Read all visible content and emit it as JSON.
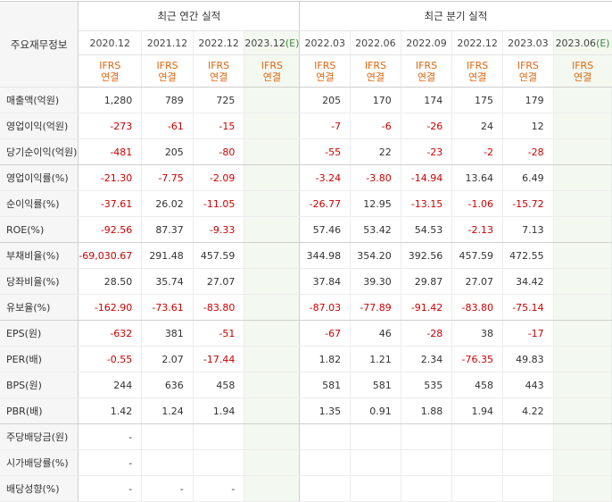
{
  "header": {
    "label_column": "주요재무정보",
    "annual_group": "최근 연간 실적",
    "quarterly_group": "최근 분기 실적",
    "annual_periods": [
      "2020.12",
      "2021.12",
      "2022.12",
      "2023.12"
    ],
    "annual_estimate_mark": "(E)",
    "quarterly_periods": [
      "2022.03",
      "2022.06",
      "2022.09",
      "2022.12",
      "2023.03",
      "2023.06"
    ],
    "quarterly_estimate_mark": "(E)",
    "basis_line1": "IFRS",
    "basis_line2": "연결"
  },
  "rows": [
    {
      "label": "매출액(억원)",
      "annual": [
        "1,280",
        "789",
        "725",
        ""
      ],
      "quarterly": [
        "205",
        "170",
        "174",
        "175",
        "179",
        ""
      ]
    },
    {
      "label": "영업이익(억원)",
      "annual": [
        "-273",
        "-61",
        "-15",
        ""
      ],
      "quarterly": [
        "-7",
        "-6",
        "-26",
        "24",
        "12",
        ""
      ]
    },
    {
      "label": "당기순이익(억원)",
      "annual": [
        "-481",
        "205",
        "-80",
        ""
      ],
      "quarterly": [
        "-55",
        "22",
        "-23",
        "-2",
        "-28",
        ""
      ]
    },
    {
      "label": "영업이익률(%)",
      "annual": [
        "-21.30",
        "-7.75",
        "-2.09",
        ""
      ],
      "quarterly": [
        "-3.24",
        "-3.80",
        "-14.94",
        "13.64",
        "6.49",
        ""
      ]
    },
    {
      "label": "순이익률(%)",
      "annual": [
        "-37.61",
        "26.02",
        "-11.05",
        ""
      ],
      "quarterly": [
        "-26.77",
        "12.95",
        "-13.15",
        "-1.06",
        "-15.72",
        ""
      ]
    },
    {
      "label": "ROE(%)",
      "annual": [
        "-92.56",
        "87.37",
        "-9.33",
        ""
      ],
      "quarterly": [
        "57.46",
        "53.42",
        "54.53",
        "-2.13",
        "7.13",
        ""
      ]
    },
    {
      "label": "부채비율(%)",
      "annual": [
        "-69,030.67",
        "291.48",
        "457.59",
        ""
      ],
      "quarterly": [
        "344.98",
        "354.20",
        "392.56",
        "457.59",
        "472.55",
        ""
      ]
    },
    {
      "label": "당좌비율(%)",
      "annual": [
        "28.50",
        "35.74",
        "27.07",
        ""
      ],
      "quarterly": [
        "37.84",
        "39.30",
        "29.87",
        "27.07",
        "34.42",
        ""
      ]
    },
    {
      "label": "유보율(%)",
      "annual": [
        "-162.90",
        "-73.61",
        "-83.80",
        ""
      ],
      "quarterly": [
        "-87.03",
        "-77.89",
        "-91.42",
        "-83.80",
        "-75.14",
        ""
      ]
    },
    {
      "label": "EPS(원)",
      "annual": [
        "-632",
        "381",
        "-51",
        ""
      ],
      "quarterly": [
        "-67",
        "46",
        "-28",
        "38",
        "-17",
        ""
      ]
    },
    {
      "label": "PER(배)",
      "annual": [
        "-0.55",
        "2.07",
        "-17.44",
        ""
      ],
      "quarterly": [
        "1.82",
        "1.21",
        "2.34",
        "-76.35",
        "49.83",
        ""
      ]
    },
    {
      "label": "BPS(원)",
      "annual": [
        "244",
        "636",
        "458",
        ""
      ],
      "quarterly": [
        "581",
        "581",
        "535",
        "458",
        "443",
        ""
      ]
    },
    {
      "label": "PBR(배)",
      "annual": [
        "1.42",
        "1.24",
        "1.94",
        ""
      ],
      "quarterly": [
        "1.35",
        "0.91",
        "1.88",
        "1.94",
        "4.22",
        ""
      ]
    },
    {
      "label": "주당배당금(원)",
      "annual": [
        "-",
        "",
        "",
        ""
      ],
      "quarterly": [
        "",
        "",
        "",
        "",
        "",
        ""
      ]
    },
    {
      "label": "시가배당률(%)",
      "annual": [
        "-",
        "",
        "",
        ""
      ],
      "quarterly": [
        "",
        "",
        "",
        "",
        "",
        ""
      ]
    },
    {
      "label": "배당성향(%)",
      "annual": [
        "-",
        "-",
        "-",
        ""
      ],
      "quarterly": [
        "",
        "",
        "",
        "",
        "",
        ""
      ]
    }
  ],
  "colors": {
    "negative": "#cc0000",
    "basis": "#e0660f",
    "estimate_mark": "#3d8c3d",
    "estimate_bg": "#f3f8f0",
    "label_bg": "#f6f6f6"
  }
}
